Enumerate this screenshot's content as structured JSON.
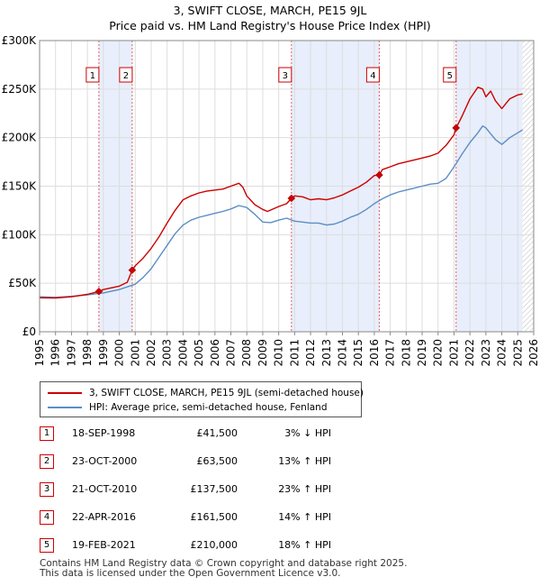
{
  "title_line1": "3, SWIFT CLOSE, MARCH, PE15 9JL",
  "title_line2": "Price paid vs. HM Land Registry's House Price Index (HPI)",
  "chart_data": {
    "type": "line",
    "title": "3, SWIFT CLOSE, MARCH, PE15 9JL — Price paid vs. HM Land Registry's House Price Index (HPI)",
    "xlim": [
      1995,
      2026
    ],
    "ylim": [
      0,
      300000
    ],
    "x_ticks": [
      "1995",
      "1996",
      "1997",
      "1998",
      "1999",
      "2000",
      "2001",
      "2002",
      "2003",
      "2004",
      "2005",
      "2006",
      "2007",
      "2008",
      "2009",
      "2010",
      "2011",
      "2012",
      "2013",
      "2014",
      "2015",
      "2016",
      "2017",
      "2018",
      "2019",
      "2020",
      "2021",
      "2022",
      "2023",
      "2024",
      "2025",
      "2026"
    ],
    "y_ticks": [
      {
        "value": 0,
        "label": "£0"
      },
      {
        "value": 50000,
        "label": "£50K"
      },
      {
        "value": 100000,
        "label": "£100K"
      },
      {
        "value": 150000,
        "label": "£150K"
      },
      {
        "value": 200000,
        "label": "£200K"
      },
      {
        "value": 250000,
        "label": "£250K"
      },
      {
        "value": 300000,
        "label": "£300K"
      }
    ],
    "grid": true,
    "series": [
      {
        "name": "3, SWIFT CLOSE, MARCH, PE15 9JL (semi-detached house)",
        "color": "#cc0000",
        "x": [
          1995,
          1996,
          1997,
          1998,
          1998.72,
          1999,
          2000,
          2000.5,
          2000.81,
          2001,
          2001.5,
          2002,
          2002.5,
          2003,
          2003.5,
          2004,
          2004.5,
          2005,
          2005.5,
          2006,
          2006.5,
          2007,
          2007.5,
          2007.75,
          2008,
          2008.5,
          2009,
          2009.3,
          2010,
          2010.5,
          2010.8,
          2011,
          2011.5,
          2012,
          2012.5,
          2013,
          2013.5,
          2014,
          2014.5,
          2015,
          2015.5,
          2016,
          2016.31,
          2016.5,
          2017,
          2017.5,
          2018,
          2018.5,
          2019,
          2019.5,
          2020,
          2020.5,
          2021,
          2021.13,
          2021.5,
          2022,
          2022.5,
          2022.8,
          2023,
          2023.3,
          2023.6,
          2024,
          2024.5,
          2025,
          2025.3
        ],
        "values": [
          35000,
          34800,
          36000,
          38500,
          41500,
          43500,
          47000,
          51000,
          63500,
          68000,
          76000,
          86000,
          98000,
          112000,
          125000,
          136000,
          140000,
          143000,
          145000,
          146000,
          147000,
          150000,
          153000,
          149000,
          140000,
          131000,
          126000,
          124000,
          129000,
          132000,
          137500,
          140000,
          139000,
          136000,
          137000,
          136000,
          138000,
          141000,
          145000,
          149000,
          154000,
          161000,
          161500,
          167000,
          170000,
          173000,
          175000,
          177000,
          179000,
          181000,
          184000,
          192000,
          203000,
          210000,
          222000,
          240000,
          252000,
          250000,
          242000,
          248000,
          238000,
          230000,
          240000,
          244000,
          245000
        ]
      },
      {
        "name": "HPI: Average price, semi-detached house, Fenland",
        "color": "#5b8ec4",
        "x": [
          1995,
          1996,
          1997,
          1998,
          1999,
          2000,
          2001,
          2001.5,
          2002,
          2002.5,
          2003,
          2003.5,
          2004,
          2004.5,
          2005,
          2005.5,
          2006,
          2006.5,
          2007,
          2007.5,
          2008,
          2008.5,
          2009,
          2009.5,
          2010,
          2010.5,
          2011,
          2011.5,
          2012,
          2012.5,
          2013,
          2013.5,
          2014,
          2014.5,
          2015,
          2015.5,
          2016,
          2016.5,
          2017,
          2017.5,
          2018,
          2018.5,
          2019,
          2019.5,
          2020,
          2020.5,
          2021,
          2021.5,
          2022,
          2022.5,
          2022.8,
          2023,
          2023.3,
          2023.6,
          2024,
          2024.5,
          2025,
          2025.3
        ],
        "values": [
          36000,
          35500,
          36500,
          38000,
          40000,
          43500,
          49000,
          56000,
          65000,
          77000,
          89000,
          101000,
          110000,
          115000,
          118000,
          120000,
          122000,
          124000,
          126500,
          130000,
          128000,
          121000,
          113000,
          112500,
          115000,
          117000,
          114000,
          113000,
          112000,
          112000,
          110000,
          111000,
          114000,
          118000,
          121000,
          126000,
          132000,
          137000,
          141000,
          144000,
          146000,
          148000,
          150000,
          152000,
          153000,
          158000,
          170000,
          183000,
          195000,
          205000,
          212000,
          210000,
          204000,
          198000,
          193000,
          200000,
          205000,
          208000
        ]
      }
    ],
    "sales": [
      {
        "id": "1",
        "date": "18-SEP-1998",
        "price": "£41,500",
        "hpi": "3% ↓ HPI",
        "x": 1998.72,
        "value": 41500
      },
      {
        "id": "2",
        "date": "23-OCT-2000",
        "price": "£63,500",
        "hpi": "13% ↑ HPI",
        "x": 2000.81,
        "value": 63500
      },
      {
        "id": "3",
        "date": "21-OCT-2010",
        "price": "£137,500",
        "hpi": "23% ↑ HPI",
        "x": 2010.8,
        "value": 137500
      },
      {
        "id": "4",
        "date": "22-APR-2016",
        "price": "£161,500",
        "hpi": "14% ↑ HPI",
        "x": 2016.31,
        "value": 161500
      },
      {
        "id": "5",
        "date": "19-FEB-2021",
        "price": "£210,000",
        "hpi": "18% ↑ HPI",
        "x": 2021.13,
        "value": 210000
      }
    ],
    "shaded_ranges": [
      [
        1998.72,
        2000.81
      ],
      [
        2010.8,
        2016.31
      ],
      [
        2021.13,
        2025.3
      ]
    ],
    "hatch_from": 2025.3
  },
  "legend": {
    "property_label": "3, SWIFT CLOSE, MARCH, PE15 9JL (semi-detached house)",
    "hpi_label": "HPI: Average price, semi-detached house, Fenland"
  },
  "footer": {
    "line1": "Contains HM Land Registry data © Crown copyright and database right 2025.",
    "line2": "This data is licensed under the Open Government Licence v3.0."
  },
  "colors": {
    "property": "#cc0000",
    "hpi": "#5b8ec4",
    "shade": "#e8eefb",
    "grid": "#dddddd"
  }
}
